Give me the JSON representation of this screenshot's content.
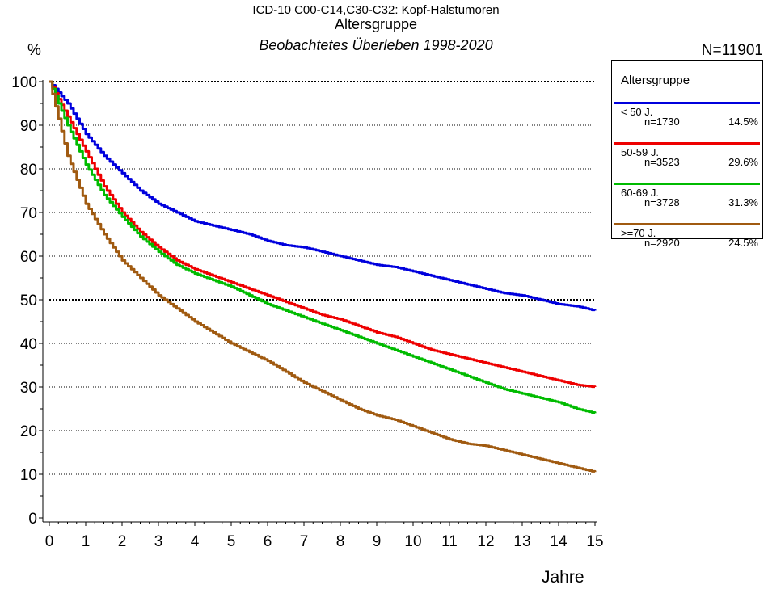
{
  "header": {
    "line1": "ICD-10 C00-C14,C30-C32: Kopf-Halstumoren",
    "line2": "Altersgruppe",
    "line3": "Beobachtetes Überleben 1998-2020",
    "ylabel": "%",
    "total": "N=11901",
    "xlabel": "Jahre"
  },
  "legend": {
    "title": "Altersgruppe",
    "items": [
      {
        "name": "< 50 J.",
        "n": "n=1730",
        "pct": "14.5%",
        "color": "#0000dd"
      },
      {
        "name": "50-59 J.",
        "n": "n=3523",
        "pct": "29.6%",
        "color": "#ee0000"
      },
      {
        "name": "60-69 J.",
        "n": "n=3728",
        "pct": "31.3%",
        "color": "#00bb00"
      },
      {
        "name": ">=70 J.",
        "n": "n=2920",
        "pct": "24.5%",
        "color": "#a05a10"
      }
    ]
  },
  "chart_data": {
    "type": "line",
    "title": "ICD-10 C00-C14,C30-C32: Kopf-Halstumoren",
    "subtitle": "Altersgruppe",
    "xlabel": "Jahre",
    "ylabel": "%",
    "xlim": [
      0,
      15
    ],
    "ylim": [
      0,
      100
    ],
    "xticks": [
      0,
      1,
      2,
      3,
      4,
      5,
      6,
      7,
      8,
      9,
      10,
      11,
      12,
      13,
      14,
      15
    ],
    "yticks": [
      0,
      10,
      20,
      30,
      40,
      50,
      60,
      70,
      80,
      90,
      100
    ],
    "grid": "horizontal dotted",
    "legend_position": "right",
    "series": [
      {
        "name": "< 50 J.",
        "color": "#0000dd",
        "x": [
          0,
          0.5,
          1,
          1.5,
          2,
          2.5,
          3,
          3.5,
          4,
          4.5,
          5,
          5.5,
          6,
          6.5,
          7,
          7.5,
          8,
          8.5,
          9,
          9.5,
          10,
          10.5,
          11,
          11.5,
          12,
          12.5,
          13,
          13.5,
          14,
          14.5,
          15
        ],
        "y": [
          100,
          95,
          88,
          83,
          79,
          75,
          72,
          70,
          68,
          67,
          66,
          65,
          63.5,
          62.5,
          62,
          61,
          60,
          59,
          58,
          57.5,
          56.5,
          55.5,
          54.5,
          53.5,
          52.5,
          51.5,
          51,
          50,
          49,
          48.5,
          47.5
        ]
      },
      {
        "name": "50-59 J.",
        "color": "#ee0000",
        "x": [
          0,
          0.5,
          1,
          1.5,
          2,
          2.5,
          3,
          3.5,
          4,
          4.5,
          5,
          5.5,
          6,
          6.5,
          7,
          7.5,
          8,
          8.5,
          9,
          9.5,
          10,
          10.5,
          11,
          11.5,
          12,
          12.5,
          13,
          13.5,
          14,
          14.5,
          15
        ],
        "y": [
          100,
          92,
          84,
          76,
          70,
          65.5,
          62,
          59,
          57,
          55.5,
          54,
          52.5,
          51,
          49.5,
          48,
          46.5,
          45.5,
          44,
          42.5,
          41.5,
          40,
          38.5,
          37.5,
          36.5,
          35.5,
          34.5,
          33.5,
          32.5,
          31.5,
          30.5,
          30
        ]
      },
      {
        "name": "60-69 J.",
        "color": "#00bb00",
        "x": [
          0,
          0.5,
          1,
          1.5,
          2,
          2.5,
          3,
          3.5,
          4,
          4.5,
          5,
          5.5,
          6,
          6.5,
          7,
          7.5,
          8,
          8.5,
          9,
          9.5,
          10,
          10.5,
          11,
          11.5,
          12,
          12.5,
          13,
          13.5,
          14,
          14.5,
          15
        ],
        "y": [
          100,
          90,
          81,
          74,
          69,
          64.5,
          61,
          58,
          56,
          54.5,
          53,
          51,
          49,
          47.5,
          46,
          44.5,
          43,
          41.5,
          40,
          38.5,
          37,
          35.5,
          34,
          32.5,
          31,
          29.5,
          28.5,
          27.5,
          26.5,
          25,
          24
        ]
      },
      {
        "name": ">=70 J.",
        "color": "#a05a10",
        "x": [
          0,
          0.5,
          1,
          1.5,
          2,
          2.5,
          3,
          3.5,
          4,
          4.5,
          5,
          5.5,
          6,
          6.5,
          7,
          7.5,
          8,
          8.5,
          9,
          9.5,
          10,
          10.5,
          11,
          11.5,
          12,
          12.5,
          13,
          13.5,
          14,
          14.5,
          15
        ],
        "y": [
          100,
          83,
          72,
          65,
          59,
          55,
          51,
          48,
          45,
          42.5,
          40,
          38,
          36,
          33.5,
          31,
          29,
          27,
          25,
          23.5,
          22.5,
          21,
          19.5,
          18,
          17,
          16.5,
          15.5,
          14.5,
          13.5,
          12.5,
          11.5,
          10.5
        ]
      }
    ]
  }
}
